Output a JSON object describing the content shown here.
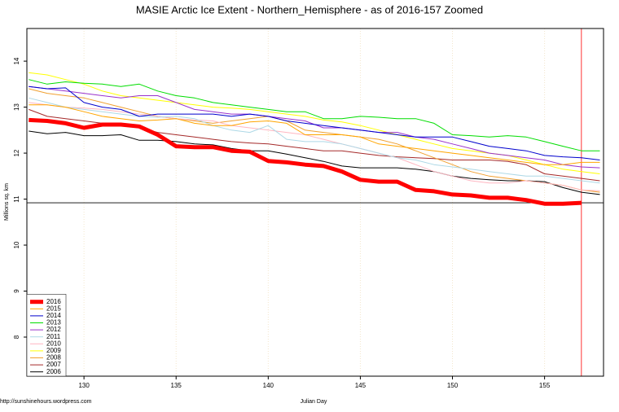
{
  "chart_data": {
    "type": "line",
    "title": "MASIE Arctic Ice Extent - Northern_Hemisphere - as of 2016-157 Zoomed",
    "x_label": "Julian Day",
    "y_label": "Millions sq. km",
    "source": "http://sunshinehours.wordpress.com",
    "x": [
      127,
      128,
      129,
      130,
      131,
      132,
      133,
      134,
      135,
      136,
      137,
      138,
      139,
      140,
      141,
      142,
      143,
      144,
      145,
      146,
      147,
      148,
      149,
      150,
      151,
      152,
      153,
      154,
      155,
      156,
      157,
      158
    ],
    "xlim": [
      126.9,
      158.2
    ],
    "xticks": [
      130,
      135,
      140,
      145,
      150,
      155
    ],
    "ylim": [
      7.15,
      14.71
    ],
    "yticks": [
      8,
      9,
      10,
      11,
      12,
      13,
      14
    ],
    "grid": true,
    "legend": "bottom-left",
    "hline": {
      "value": 10.92,
      "color": "#000000"
    },
    "vline": {
      "value": 157,
      "color": "#ff0000"
    },
    "series": [
      {
        "name": "2016",
        "color": "#ff0000",
        "width": 5,
        "values": [
          12.72,
          12.7,
          12.65,
          12.55,
          12.62,
          12.62,
          12.58,
          12.4,
          12.15,
          12.13,
          12.13,
          12.05,
          12.03,
          11.83,
          11.8,
          11.75,
          11.72,
          11.6,
          11.42,
          11.38,
          11.38,
          11.2,
          11.17,
          11.1,
          11.08,
          11.03,
          11.03,
          10.98,
          10.9,
          10.9,
          10.92,
          null
        ]
      },
      {
        "name": "2015",
        "color": "#ffa500",
        "width": 1,
        "values": [
          13.05,
          13.05,
          13.0,
          12.9,
          12.8,
          12.75,
          12.7,
          12.72,
          12.75,
          12.65,
          12.6,
          12.6,
          12.68,
          12.7,
          12.65,
          12.4,
          12.4,
          12.4,
          12.35,
          12.2,
          12.15,
          12.1,
          12.05,
          12.0,
          11.95,
          11.9,
          11.85,
          11.8,
          11.75,
          11.75,
          11.8,
          11.8
        ]
      },
      {
        "name": "2014",
        "color": "#0000cd",
        "width": 1,
        "values": [
          13.45,
          13.4,
          13.42,
          13.1,
          13.0,
          12.95,
          12.8,
          12.85,
          12.85,
          12.85,
          12.85,
          12.8,
          12.85,
          12.8,
          12.7,
          12.65,
          12.6,
          12.55,
          12.5,
          12.45,
          12.4,
          12.35,
          12.35,
          12.35,
          12.25,
          12.15,
          12.1,
          12.05,
          11.95,
          11.92,
          11.9,
          11.85
        ]
      },
      {
        "name": "2013",
        "color": "#00dd00",
        "width": 1,
        "values": [
          13.6,
          13.5,
          13.55,
          13.52,
          13.5,
          13.45,
          13.5,
          13.35,
          13.25,
          13.2,
          13.1,
          13.05,
          13.0,
          12.95,
          12.9,
          12.9,
          12.75,
          12.75,
          12.8,
          12.78,
          12.75,
          12.75,
          12.65,
          12.4,
          12.38,
          12.35,
          12.38,
          12.35,
          12.25,
          12.15,
          12.05,
          12.05
        ]
      },
      {
        "name": "2012",
        "color": "#9932cc",
        "width": 1,
        "values": [
          13.45,
          13.4,
          13.35,
          13.3,
          13.25,
          13.2,
          13.25,
          13.25,
          13.1,
          12.95,
          12.9,
          12.85,
          12.85,
          12.8,
          12.75,
          12.7,
          12.55,
          12.55,
          12.5,
          12.45,
          12.45,
          12.35,
          12.3,
          12.2,
          12.1,
          12.0,
          11.95,
          11.9,
          11.85,
          11.75,
          11.7,
          11.68
        ]
      },
      {
        "name": "2011",
        "color": "#add8e6",
        "width": 1,
        "values": [
          13.2,
          13.1,
          13.0,
          12.95,
          12.9,
          12.85,
          12.8,
          12.78,
          12.8,
          12.75,
          12.6,
          12.5,
          12.45,
          12.6,
          12.3,
          12.25,
          12.25,
          12.2,
          12.1,
          12.0,
          11.9,
          11.85,
          11.75,
          11.7,
          11.65,
          11.6,
          11.55,
          11.5,
          11.5,
          11.45,
          11.4,
          11.35
        ]
      },
      {
        "name": "2010",
        "color": "#ffb6c1",
        "width": 1,
        "values": [
          13.1,
          13.05,
          13.0,
          12.98,
          12.95,
          12.9,
          12.85,
          12.8,
          12.75,
          12.72,
          12.7,
          12.6,
          12.55,
          12.5,
          12.45,
          12.4,
          12.3,
          12.2,
          12.1,
          12.0,
          11.9,
          11.75,
          11.6,
          11.5,
          11.4,
          11.35,
          11.35,
          11.4,
          11.35,
          11.3,
          11.2,
          11.18
        ]
      },
      {
        "name": "2009",
        "color": "#ffff00",
        "width": 1,
        "values": [
          13.75,
          13.7,
          13.6,
          13.5,
          13.35,
          13.25,
          13.2,
          13.15,
          13.1,
          13.05,
          13.0,
          12.98,
          12.95,
          12.9,
          12.85,
          12.8,
          12.72,
          12.68,
          12.6,
          12.5,
          12.4,
          12.3,
          12.2,
          12.1,
          12.05,
          12.0,
          11.95,
          11.85,
          11.75,
          11.65,
          11.6,
          11.55
        ]
      },
      {
        "name": "2008",
        "color": "#f0a030",
        "width": 1,
        "values": [
          13.4,
          13.3,
          13.25,
          13.2,
          13.1,
          13.0,
          12.9,
          12.8,
          12.75,
          12.7,
          12.65,
          12.7,
          12.75,
          12.8,
          12.7,
          12.5,
          12.45,
          12.4,
          12.35,
          12.3,
          12.2,
          12.05,
          11.9,
          11.75,
          11.6,
          11.5,
          11.45,
          11.4,
          11.35,
          11.3,
          11.2,
          11.15
        ]
      },
      {
        "name": "2007",
        "color": "#a52a2a",
        "width": 1,
        "values": [
          12.95,
          12.8,
          12.75,
          12.7,
          12.65,
          12.6,
          12.55,
          12.45,
          12.4,
          12.35,
          12.3,
          12.25,
          12.22,
          12.2,
          12.15,
          12.1,
          12.05,
          12.05,
          12.0,
          11.95,
          11.92,
          11.9,
          11.88,
          11.85,
          11.85,
          11.85,
          11.82,
          11.75,
          11.55,
          11.5,
          11.45,
          11.4
        ]
      },
      {
        "name": "2006",
        "color": "#000000",
        "width": 1,
        "values": [
          12.48,
          12.42,
          12.45,
          12.38,
          12.38,
          12.4,
          12.28,
          12.28,
          12.25,
          12.2,
          12.18,
          12.1,
          12.05,
          12.05,
          11.98,
          11.9,
          11.82,
          11.72,
          11.68,
          11.68,
          11.68,
          11.65,
          11.6,
          11.5,
          11.45,
          11.42,
          11.4,
          11.4,
          11.38,
          11.25,
          11.15,
          11.1
        ]
      }
    ]
  }
}
